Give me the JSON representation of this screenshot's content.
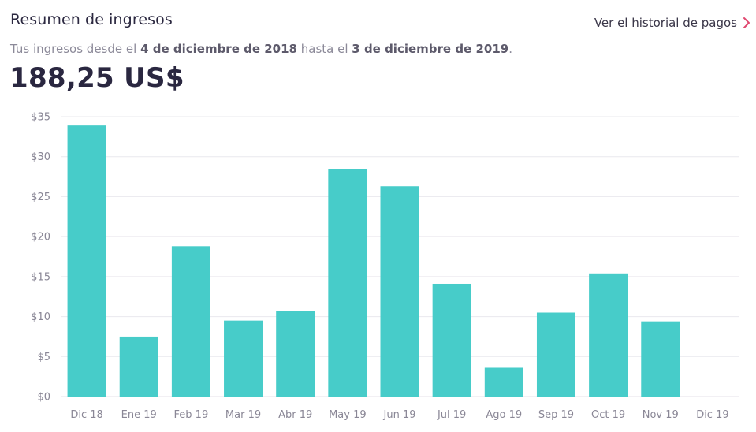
{
  "header": {
    "title": "Resumen de ingresos",
    "history_link": "Ver el historial de pagos",
    "subtitle_prefix": "Tus ingresos desde el ",
    "start_date": "4 de diciembre de 2018",
    "subtitle_middle": " hasta el ",
    "end_date": "3 de diciembre de 2019",
    "subtitle_suffix": ".",
    "total": "188,25 US$"
  },
  "colors": {
    "bar": "#47ccc9",
    "grid": "#e9e8ee",
    "link_chevron": "#e0476f"
  },
  "icons": {
    "history_chevron": "chevron-right-icon"
  },
  "chart_data": {
    "type": "bar",
    "categories": [
      "Dic 18",
      "Ene 19",
      "Feb 19",
      "Mar 19",
      "Abr 19",
      "May 19",
      "Jun 19",
      "Jul 19",
      "Ago 19",
      "Sep 19",
      "Oct 19",
      "Nov 19",
      "Dic 19"
    ],
    "values": [
      33.9,
      7.5,
      18.8,
      9.5,
      10.7,
      28.4,
      26.3,
      14.1,
      3.6,
      10.5,
      15.4,
      9.4,
      0
    ],
    "yticks": [
      0,
      5,
      10,
      15,
      20,
      25,
      30,
      35
    ],
    "ytick_labels": [
      "$0",
      "$5",
      "$10",
      "$15",
      "$20",
      "$25",
      "$30",
      "$35"
    ],
    "ylim": [
      0,
      35
    ],
    "grid": true,
    "legend": "none"
  }
}
